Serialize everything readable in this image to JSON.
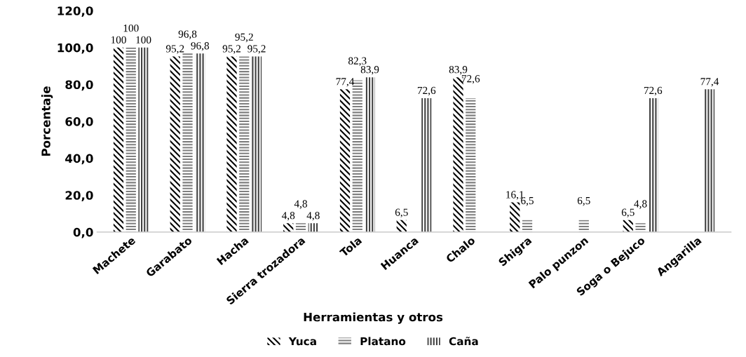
{
  "chart_data": {
    "type": "bar",
    "xlabel": "Herramientas y otros",
    "ylabel": "Porcentaje",
    "categories": [
      "Machete",
      "Garabato",
      "Hacha",
      "Sierra trozadora",
      "Tola",
      "Huanca",
      "Chalo",
      "Shigra",
      "Palo punzon",
      "Soga o Bejuco",
      "Angarilla"
    ],
    "series": [
      {
        "name": "Yuca",
        "color": "#000000",
        "values": [
          100,
          95.2,
          95.2,
          4.8,
          77.4,
          6.5,
          83.9,
          16.1,
          null,
          6.5,
          null
        ],
        "value_labels": [
          "100",
          "95,2",
          "95,2",
          "4,8",
          "77,4",
          "6,5",
          "83,9",
          "16,1",
          null,
          "6,5",
          null
        ]
      },
      {
        "name": "Platano",
        "color": "#7f7f7f",
        "values": [
          100,
          96.8,
          95.2,
          4.8,
          82.3,
          null,
          72.6,
          6.5,
          6.5,
          4.8,
          null
        ],
        "value_labels": [
          "100",
          "96,8",
          "95,2",
          "4,8",
          "82,3",
          null,
          "72,6",
          "6,5",
          "6,5",
          "4,8",
          null
        ]
      },
      {
        "name": "Caña",
        "color": "#404040",
        "values": [
          100,
          96.8,
          95.2,
          4.8,
          83.9,
          72.6,
          null,
          null,
          null,
          72.6,
          77.4
        ],
        "value_labels": [
          "100",
          "96,8",
          "95,2",
          "4,8",
          "83,9",
          "72,6",
          null,
          null,
          null,
          "72,6",
          "77,4"
        ]
      }
    ],
    "ylim": [
      0,
      120
    ],
    "yticks": [
      {
        "value": 0,
        "label": "0,0"
      },
      {
        "value": 20,
        "label": "20,0"
      },
      {
        "value": 40,
        "label": "40,0"
      },
      {
        "value": 60,
        "label": "60,0"
      },
      {
        "value": 80,
        "label": "80,0"
      },
      {
        "value": 100,
        "label": "100,0"
      },
      {
        "value": 120,
        "label": "120,0"
      }
    ],
    "grid": false,
    "legend": "bottom"
  }
}
